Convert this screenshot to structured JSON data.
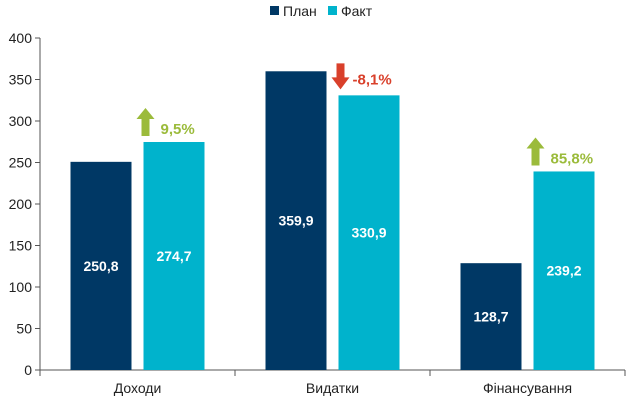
{
  "chart_data": {
    "type": "bar",
    "categories": [
      "Доходи",
      "Видатки",
      "Фінансування"
    ],
    "series": [
      {
        "name": "План",
        "values": [
          250.8,
          359.9,
          128.7
        ],
        "labels": [
          "250,8",
          "359,9",
          "128,7"
        ],
        "color": "#003865"
      },
      {
        "name": "Факт",
        "values": [
          274.7,
          330.9,
          239.2
        ],
        "labels": [
          "274,7",
          "330,9",
          "239,2"
        ],
        "color": "#00B3CC"
      }
    ],
    "annotations": [
      {
        "category": "Доходи",
        "text": "9,5%",
        "direction": "up",
        "color": "#9BBB3B"
      },
      {
        "category": "Видатки",
        "text": "-8,1%",
        "direction": "down",
        "color": "#D9402B"
      },
      {
        "category": "Фінансування",
        "text": "85,8%",
        "direction": "up",
        "color": "#9BBB3B"
      }
    ],
    "ylim": [
      0,
      400
    ],
    "yticks": [
      0,
      50,
      100,
      150,
      200,
      250,
      300,
      350,
      400
    ],
    "grid": false,
    "legend_position": "top-center",
    "title": "",
    "xlabel": "",
    "ylabel": ""
  }
}
